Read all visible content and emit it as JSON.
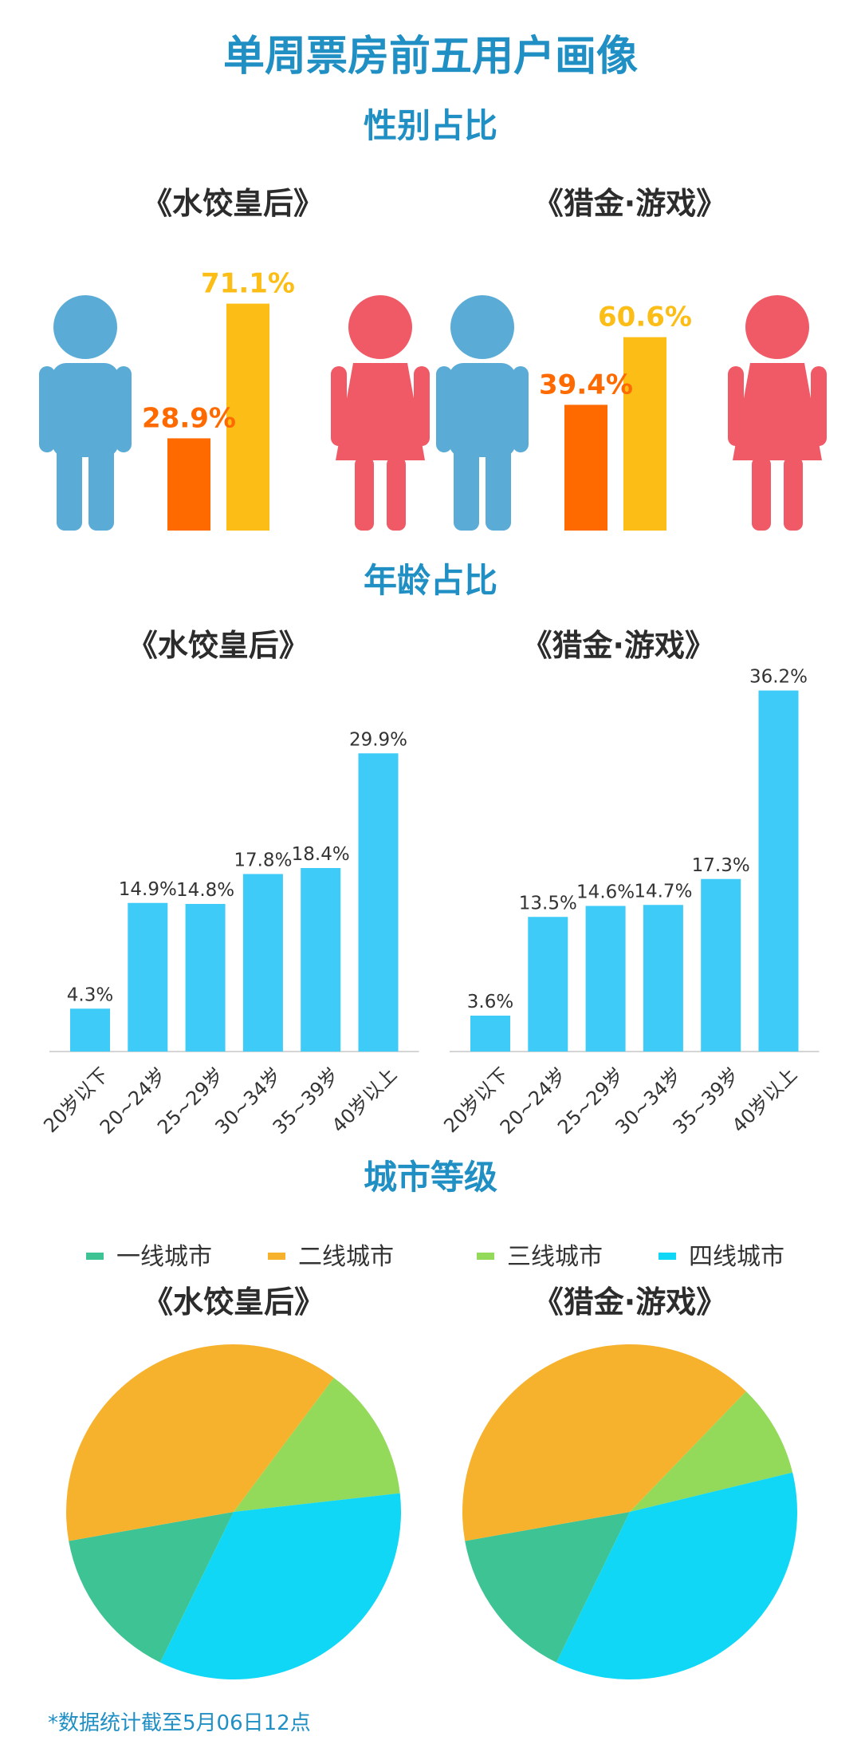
{
  "main_title": "单周票房前五用户画像",
  "gender_section": {
    "title": "性别占比",
    "charts": [
      {
        "movie": "《水饺皇后》",
        "male_pct": 28.9,
        "female_pct": 71.1,
        "male_label": "28.9%",
        "female_label": "71.1%"
      },
      {
        "movie": "《猎金·游戏》",
        "male_pct": 39.4,
        "female_pct": 60.6,
        "male_label": "39.4%",
        "female_label": "60.6%"
      }
    ]
  },
  "age_section": {
    "title": "年龄占比"
  },
  "city_section": {
    "title": "城市等级",
    "legend": [
      {
        "label": "一线城市",
        "color": "#3dc394"
      },
      {
        "label": "二线城市",
        "color": "#f7b22d"
      },
      {
        "label": "三线城市",
        "color": "#93d95a"
      },
      {
        "label": "四线城市",
        "color": "#0fd7f5"
      }
    ]
  },
  "footnote": "*数据统计截至5月06日12点",
  "colors": {
    "title": "#1f8fc4",
    "male": "#5aacd7",
    "female": "#f05a66",
    "male_bar": "#ff6a00",
    "female_bar": "#fbbd16",
    "age_bar": "#3ecbf8"
  },
  "chart_data": [
    {
      "type": "bar",
      "title": "《水饺皇后》",
      "categories": [
        "男",
        "女"
      ],
      "values": [
        28.9,
        71.1
      ]
    },
    {
      "type": "bar",
      "title": "《猎金·游戏》",
      "categories": [
        "男",
        "女"
      ],
      "values": [
        39.4,
        60.6
      ]
    },
    {
      "type": "bar",
      "title": "《水饺皇后》",
      "categories": [
        "20岁以下",
        "20~24岁",
        "25~29岁",
        "30~34岁",
        "35~39岁",
        "40岁以上"
      ],
      "values": [
        4.3,
        14.9,
        14.8,
        17.8,
        18.4,
        29.9
      ],
      "ylim": [
        0,
        40
      ]
    },
    {
      "type": "bar",
      "title": "《猎金·游戏》",
      "categories": [
        "20岁以下",
        "20~24岁",
        "25~29岁",
        "30~34岁",
        "35~39岁",
        "40岁以上"
      ],
      "values": [
        3.6,
        13.5,
        14.6,
        14.7,
        17.3,
        36.2
      ],
      "ylim": [
        0,
        40
      ]
    },
    {
      "type": "pie",
      "title": "《水饺皇后》",
      "categories": [
        "一线城市",
        "二线城市",
        "三线城市",
        "四线城市"
      ],
      "values": [
        15,
        38,
        13,
        34
      ]
    },
    {
      "type": "pie",
      "title": "《猎金·游戏》",
      "categories": [
        "一线城市",
        "二线城市",
        "三线城市",
        "四线城市"
      ],
      "values": [
        15,
        40,
        9,
        36
      ]
    }
  ]
}
